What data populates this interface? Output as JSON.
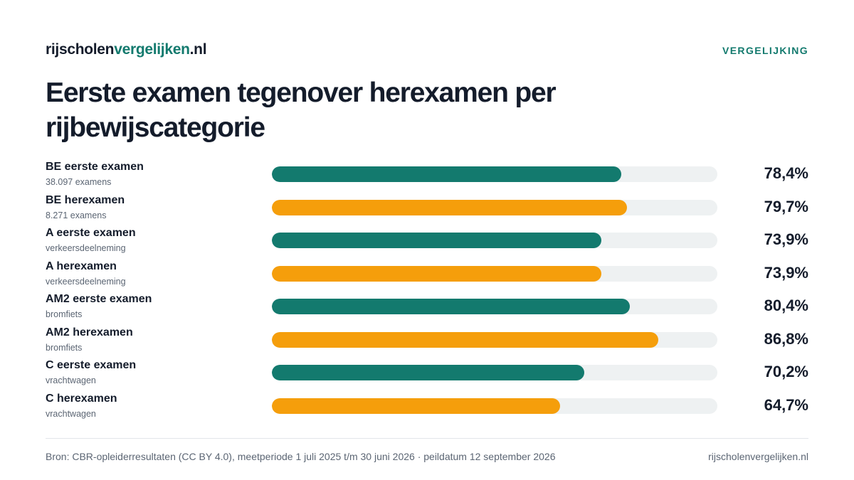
{
  "header": {
    "logo_part1": "rijscholen",
    "logo_part2": "vergelijken",
    "logo_part3": ".nl",
    "tag": "VERGELIJKING"
  },
  "title": "Eerste examen tegenover herexamen per rijbewijscategorie",
  "colors": {
    "eerste": "#137a6e",
    "herexamen": "#f59e0b",
    "track": "#eef1f2"
  },
  "chart_data": {
    "type": "bar",
    "orientation": "horizontal",
    "xlim": [
      0,
      100
    ],
    "unit": "%",
    "rows": [
      {
        "label": "BE eerste examen",
        "sub": "38.097 examens",
        "value": 78.4,
        "display": "78,4%",
        "kind": "eerste"
      },
      {
        "label": "BE herexamen",
        "sub": "8.271 examens",
        "value": 79.7,
        "display": "79,7%",
        "kind": "herexamen"
      },
      {
        "label": "A eerste examen",
        "sub": "verkeersdeelneming",
        "value": 73.9,
        "display": "73,9%",
        "kind": "eerste"
      },
      {
        "label": "A herexamen",
        "sub": "verkeersdeelneming",
        "value": 73.9,
        "display": "73,9%",
        "kind": "herexamen"
      },
      {
        "label": "AM2 eerste examen",
        "sub": "bromfiets",
        "value": 80.4,
        "display": "80,4%",
        "kind": "eerste"
      },
      {
        "label": "AM2 herexamen",
        "sub": "bromfiets",
        "value": 86.8,
        "display": "86,8%",
        "kind": "herexamen"
      },
      {
        "label": "C eerste examen",
        "sub": "vrachtwagen",
        "value": 70.2,
        "display": "70,2%",
        "kind": "eerste"
      },
      {
        "label": "C herexamen",
        "sub": "vrachtwagen",
        "value": 64.7,
        "display": "64,7%",
        "kind": "herexamen"
      }
    ]
  },
  "footer": {
    "source": "Bron: CBR-opleiderresultaten (CC BY 4.0), meetperiode 1 juli 2025 t/m 30 juni 2026 · peildatum 12 september 2026",
    "site": "rijscholenvergelijken.nl"
  }
}
